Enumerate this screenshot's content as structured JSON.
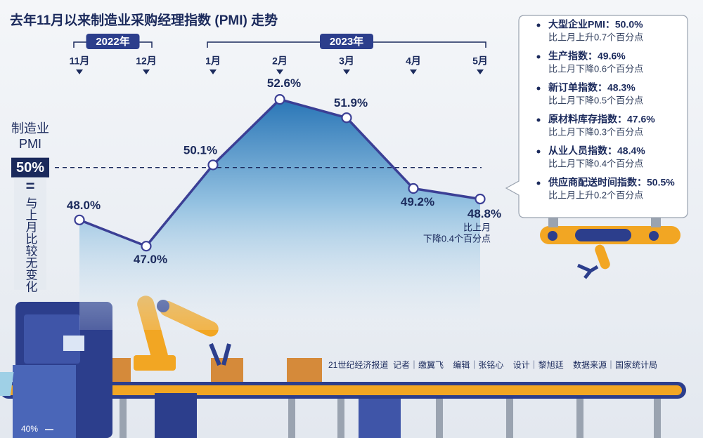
{
  "chart_data": {
    "type": "line",
    "title": "去年11月以来制造业采购经理指数 (PMI) 走势",
    "year_labels": [
      {
        "text": "2022年",
        "from": 0,
        "to": 1
      },
      {
        "text": "2023年",
        "from": 2,
        "to": 6
      }
    ],
    "categories": [
      "11月",
      "12月",
      "1月",
      "2月",
      "3月",
      "4月",
      "5月"
    ],
    "values": [
      48.0,
      47.0,
      50.1,
      52.6,
      51.9,
      49.2,
      48.8
    ],
    "value_labels": [
      "48.0%",
      "47.0%",
      "50.1%",
      "52.6%",
      "51.9%",
      "49.2%",
      "48.8%"
    ],
    "color": "#3b3f95",
    "ylim": [
      40,
      53.5
    ],
    "yticks": [
      {
        "value": 40,
        "label": "40%"
      }
    ],
    "reference": {
      "value": 50,
      "label": "50%",
      "title": [
        "制造业",
        "PMI"
      ],
      "equals": "=",
      "note": "与上月比较无变化"
    },
    "annotation": [
      "比上月",
      "下降0.4个百分点"
    ]
  },
  "panel": {
    "items": [
      {
        "text": "大型企业PMI：50.0%",
        "note": "比上月上升0.7个百分点"
      },
      {
        "text": "生产指数：49.6%",
        "note": "比上月下降0.6个百分点"
      },
      {
        "text": "新订单指数：48.3%",
        "note": "比上月下降0.5个百分点"
      },
      {
        "text": "原材料库存指数：47.6%",
        "note": "比上月下降0.3个百分点"
      },
      {
        "text": "从业人员指数：48.4%",
        "note": "比上月下降0.4个百分点"
      },
      {
        "text": "供应商配送时间指数：50.5%",
        "note": "比上月上升0.2个百分点"
      }
    ]
  },
  "credits": "21世纪经济报道  记者｜缴翼飞    编辑｜张铭心    设计｜黎旭廷    数据来源｜国家统计局"
}
